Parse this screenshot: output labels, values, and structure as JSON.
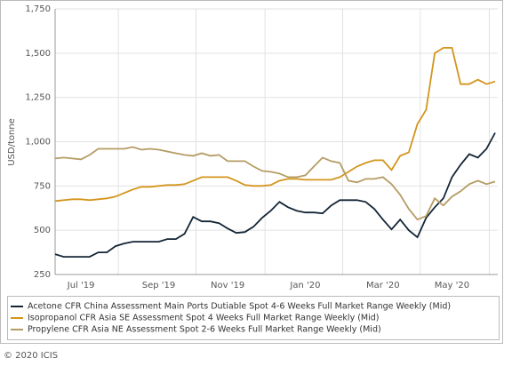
{
  "chart_data": {
    "type": "line",
    "y_label": "USD/tonne",
    "footer": "© 2020 ICIS",
    "categories": [
      null,
      null,
      null,
      "Jul '19",
      null,
      null,
      null,
      null,
      null,
      null,
      null,
      null,
      "Sep '19",
      null,
      null,
      null,
      null,
      null,
      null,
      null,
      "Nov '19",
      null,
      null,
      null,
      null,
      null,
      null,
      null,
      null,
      "Jan '20",
      null,
      null,
      null,
      null,
      null,
      null,
      null,
      null,
      "Mar '20",
      null,
      null,
      null,
      null,
      null,
      null,
      null,
      "May '20",
      null,
      null,
      null,
      null,
      null
    ],
    "series": [
      {
        "name": "Acetone CFR China Assessment Main Ports Dutiable Spot 4-6 Weeks Full Market Range Weekly (Mid)",
        "color": "#132536",
        "values": [
          365,
          350,
          350,
          350,
          350,
          375,
          375,
          410,
          425,
          435,
          435,
          435,
          435,
          450,
          450,
          480,
          575,
          550,
          550,
          540,
          510,
          485,
          490,
          520,
          570,
          610,
          660,
          630,
          610,
          600,
          600,
          595,
          640,
          670,
          670,
          670,
          660,
          620,
          560,
          505,
          560,
          500,
          460,
          570,
          630,
          680,
          800,
          870,
          930,
          910,
          960,
          1050
        ]
      },
      {
        "name": "Isopropanol CFR Asia SE Assessment Spot 4 Weeks Full Market Range Weekly (Mid)",
        "color": "#d3951c",
        "values": [
          665,
          670,
          675,
          675,
          670,
          675,
          680,
          690,
          710,
          730,
          745,
          745,
          750,
          755,
          755,
          760,
          780,
          800,
          800,
          800,
          800,
          780,
          755,
          750,
          750,
          755,
          780,
          790,
          790,
          785,
          785,
          785,
          785,
          800,
          830,
          860,
          880,
          895,
          895,
          840,
          920,
          940,
          1100,
          1180,
          1500,
          1530,
          1530,
          1325,
          1325,
          1350,
          1325,
          1340
        ]
      },
      {
        "name": "Propylene CFR Asia NE Assessment Spot 2-6 Weeks Full Market Range Weekly (Mid)",
        "color": "#b59c64",
        "values": [
          905,
          910,
          905,
          900,
          925,
          960,
          960,
          960,
          960,
          970,
          955,
          960,
          955,
          945,
          935,
          925,
          920,
          935,
          920,
          925,
          890,
          890,
          890,
          860,
          835,
          830,
          820,
          800,
          800,
          810,
          860,
          910,
          890,
          880,
          780,
          770,
          790,
          790,
          800,
          760,
          700,
          620,
          560,
          580,
          680,
          640,
          690,
          720,
          760,
          780,
          760,
          775
        ]
      }
    ],
    "ylim": [
      250,
      1750
    ],
    "yticks": [
      250,
      500,
      750,
      {
        "value": 1000,
        "label": "1,000"
      },
      {
        "value": 1250,
        "label": "1,250"
      },
      {
        "value": 1500,
        "label": "1,500"
      },
      {
        "value": 1750,
        "label": "1,750"
      }
    ],
    "grid": true
  }
}
